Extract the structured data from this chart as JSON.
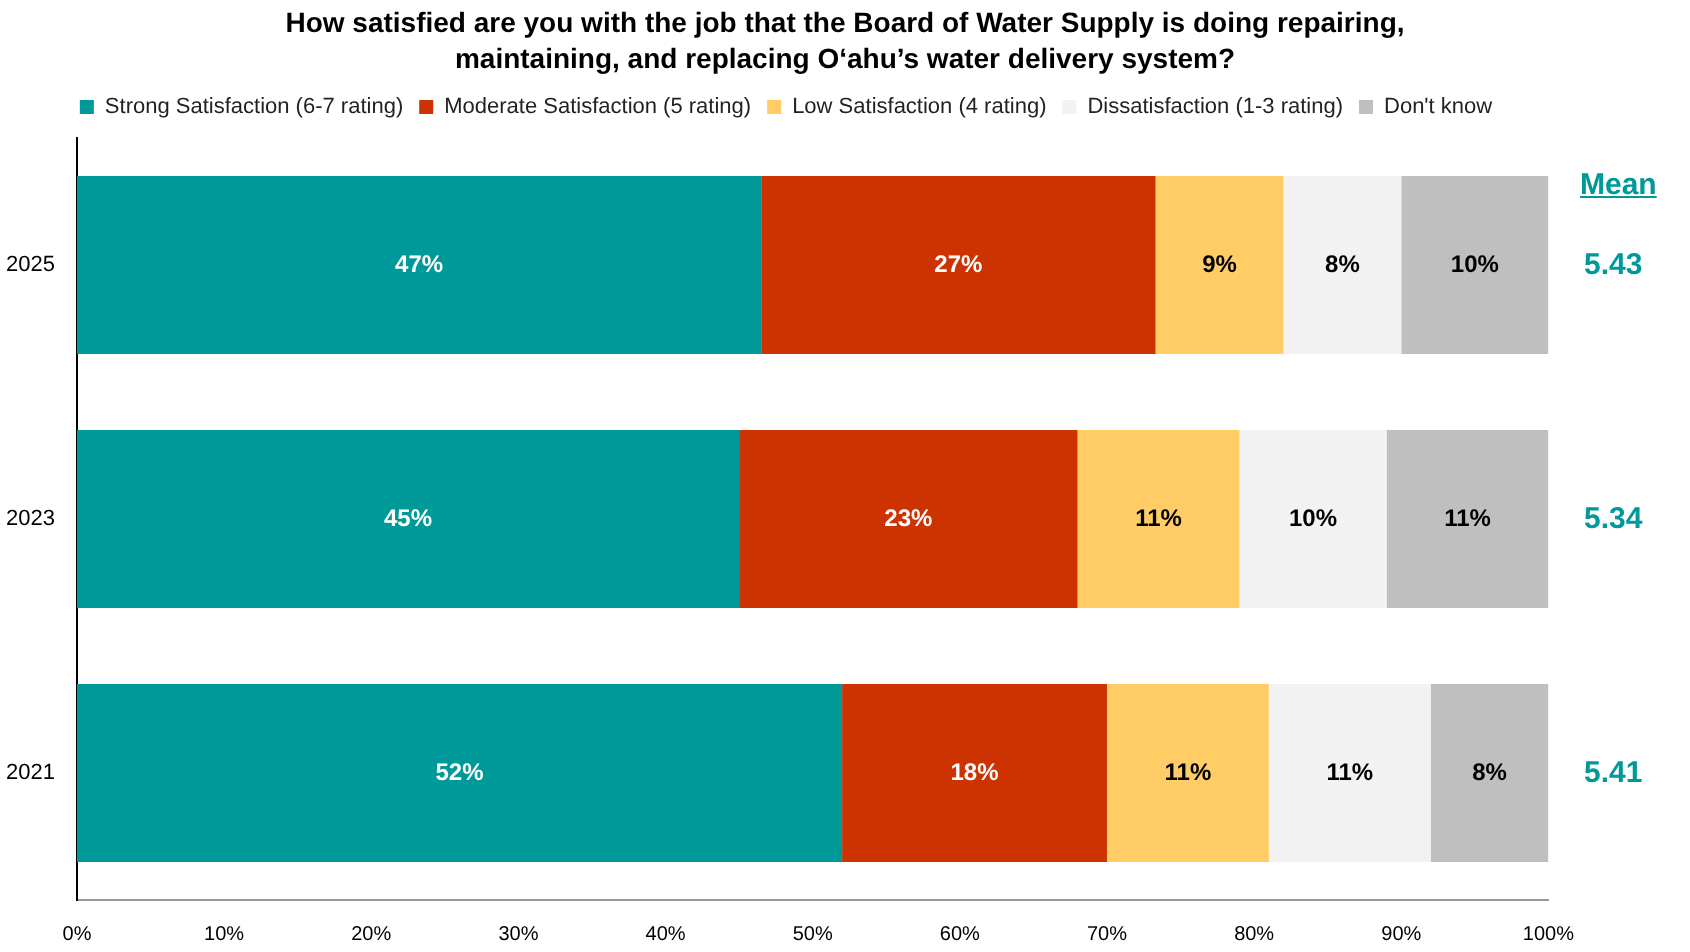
{
  "chart_data": {
    "type": "bar",
    "orientation": "horizontal",
    "stacked": true,
    "title": "How satisfied are you with the job that the Board of Water Supply is doing repairing, maintaining, and replacing O‘ahu’s water delivery system?",
    "categories": [
      "2025",
      "2023",
      "2021"
    ],
    "series": [
      {
        "name": "Strong Satisfaction (6-7 rating)",
        "color": "#009999",
        "values": [
          46.5,
          45,
          52
        ],
        "value_labels": [
          "47%",
          "45%",
          "52%"
        ]
      },
      {
        "name": "Moderate Satisfaction (5 rating)",
        "color": "#cc3300",
        "values": [
          26.8,
          23,
          18
        ],
        "value_labels": [
          "27%",
          "23%",
          "18%"
        ]
      },
      {
        "name": "Low Satisfaction (4 rating)",
        "color": "#ffcc66",
        "values": [
          8.7,
          11,
          11
        ],
        "value_labels": [
          "9%",
          "11%",
          "11%"
        ]
      },
      {
        "name": "Dissatisfaction (1-3 rating)",
        "color": "#f2f2f2",
        "values": [
          8,
          10,
          11
        ],
        "value_labels": [
          "8%",
          "10%",
          "11%"
        ]
      },
      {
        "name": "Don't know",
        "color": "#bfbfbf",
        "values": [
          10,
          11,
          8
        ],
        "value_labels": [
          "10%",
          "11%",
          "8%"
        ]
      }
    ],
    "xlim": [
      0,
      100
    ],
    "xticks": [
      {
        "value": 0,
        "label": "0%"
      },
      {
        "value": 10,
        "label": "10%"
      },
      {
        "value": 20,
        "label": "20%"
      },
      {
        "value": 30,
        "label": "30%"
      },
      {
        "value": 40,
        "label": "40%"
      },
      {
        "value": 50,
        "label": "50%"
      },
      {
        "value": 60,
        "label": "60%"
      },
      {
        "value": 70,
        "label": "70%"
      },
      {
        "value": 80,
        "label": "80%"
      },
      {
        "value": 90,
        "label": "90%"
      },
      {
        "value": 100,
        "label": "100%"
      }
    ],
    "grid": false,
    "legend": "top",
    "annotations": [
      "Mean",
      "5.43",
      "5.34",
      "5.41"
    ]
  }
}
